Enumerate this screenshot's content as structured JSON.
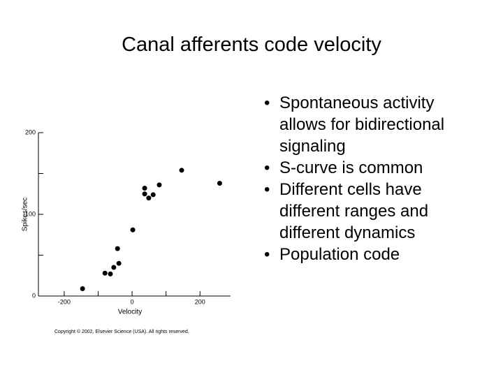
{
  "slide_title": "Canal afferents code velocity",
  "bullets": [
    "Spontaneous activity allows for bidirectional signaling",
    "S-curve is common",
    "Different cells have different ranges and different dynamics",
    "Population code"
  ],
  "chart_data": {
    "type": "scatter",
    "x_label": "Velocity",
    "y_label": "Spikes/sec",
    "caption": "Copyright © 2002, Elsevier Science (USA). All rights reserved.",
    "x": [
      -146,
      -80,
      -64,
      -54,
      -43,
      -39,
      2,
      37,
      37,
      49,
      62,
      80,
      146,
      258
    ],
    "values": [
      9,
      28,
      27,
      35,
      58,
      40,
      81,
      132,
      125,
      120,
      124,
      136,
      154,
      138
    ],
    "color": "#000000",
    "xlim": [
      -276,
      290
    ],
    "ylim": [
      0,
      200
    ],
    "xticks": [
      -200,
      0,
      200
    ],
    "yticks": [
      0,
      100,
      200
    ],
    "xminorticks": [
      -100,
      100
    ],
    "yminorticks": [
      50,
      150
    ]
  }
}
